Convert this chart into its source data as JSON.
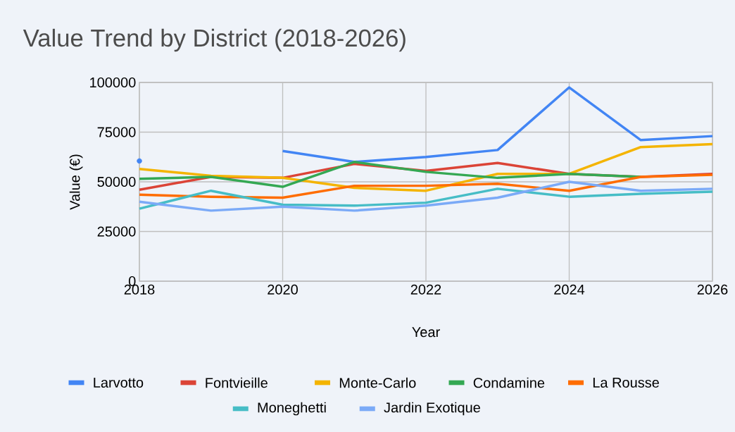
{
  "chart_data": {
    "type": "line",
    "title": "Value Trend by District (2018-2026)",
    "xlabel": "Year",
    "ylabel": "Value (€)",
    "x": [
      2018,
      2019,
      2020,
      2021,
      2022,
      2023,
      2024,
      2025,
      2026
    ],
    "series": [
      {
        "name": "Larvotto",
        "color": "#4285f4",
        "values": [
          60500,
          null,
          65500,
          60000,
          62500,
          66000,
          97500,
          71000,
          73000
        ]
      },
      {
        "name": "Fontvieille",
        "color": "#db4437",
        "values": [
          46000,
          52500,
          52000,
          59000,
          55500,
          59500,
          54000,
          52500,
          54000
        ]
      },
      {
        "name": "Monte-Carlo",
        "color": "#f4b400",
        "values": [
          56500,
          53000,
          52000,
          47000,
          45500,
          54000,
          54000,
          67500,
          69000
        ]
      },
      {
        "name": "Condamine",
        "color": "#34a853",
        "values": [
          51500,
          52500,
          47500,
          60000,
          55000,
          52000,
          54000,
          52500,
          null
        ]
      },
      {
        "name": "La Rousse",
        "color": "#ff6d01",
        "values": [
          43500,
          42500,
          42000,
          48000,
          48000,
          49000,
          45500,
          52500,
          53500
        ]
      },
      {
        "name": "Moneghetti",
        "color": "#46bdc6",
        "values": [
          36500,
          45500,
          38500,
          38000,
          39500,
          46500,
          42500,
          44000,
          45000
        ]
      },
      {
        "name": "Jardin Exotique",
        "color": "#7baaf7",
        "values": [
          40000,
          35500,
          37500,
          35500,
          38000,
          42000,
          50000,
          45500,
          46500
        ]
      }
    ],
    "xlim": [
      2018,
      2026
    ],
    "ylim": [
      0,
      100000
    ],
    "xticks": [
      2018,
      2020,
      2022,
      2024,
      2026
    ],
    "yticks": [
      0,
      25000,
      50000,
      75000,
      100000
    ],
    "grid": true,
    "legend": "bottom",
    "marker": "none",
    "line_style": "solid"
  }
}
